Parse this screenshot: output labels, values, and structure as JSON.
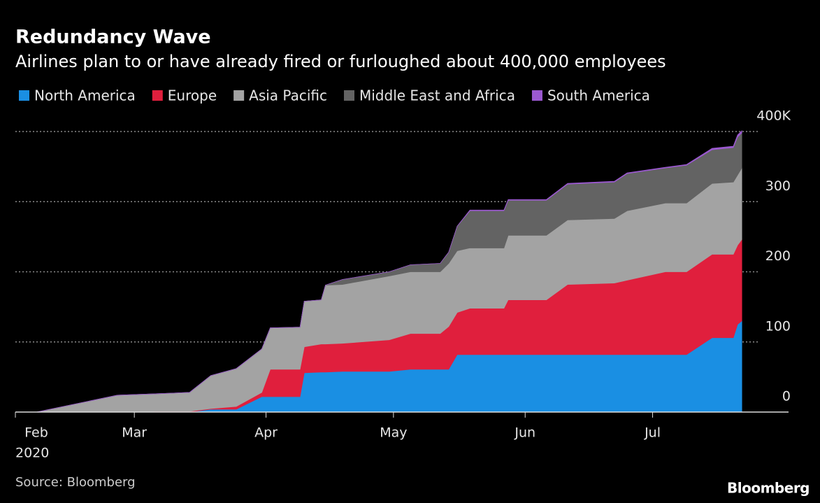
{
  "chart_data": {
    "type": "stacked_area",
    "title": "Redundancy Wave",
    "subtitle": "Airlines plan to or have already fired or furloughed about 400,000 employees",
    "source": "Source: Bloomberg",
    "brand": "Bloomberg",
    "year_label": "2020",
    "x": [
      6,
      25,
      34,
      42,
      47,
      53,
      59,
      61,
      68,
      69,
      73,
      74,
      78,
      89,
      94,
      101,
      103,
      105,
      108,
      116,
      117,
      126,
      131,
      142,
      145,
      154,
      159,
      165,
      170,
      171,
      172
    ],
    "series": [
      {
        "name": "North America",
        "color": "#1a8fe3",
        "values": [
          0,
          0,
          0,
          0,
          4,
          4,
          22,
          22,
          22,
          56,
          57,
          57,
          58,
          58,
          61,
          61,
          61,
          82,
          82,
          82,
          82,
          82,
          82,
          82,
          82,
          82,
          82,
          106,
          106,
          125,
          130
        ]
      },
      {
        "name": "Europe",
        "color": "#e01f3d",
        "values": [
          0,
          0,
          1,
          1,
          1,
          4,
          6,
          39,
          39,
          37,
          40,
          40,
          40,
          45,
          51,
          51,
          61,
          60,
          66,
          66,
          78,
          78,
          100,
          102,
          106,
          118,
          118,
          119,
          119,
          113,
          116
        ]
      },
      {
        "name": "Asia Pacific",
        "color": "#a3a3a3",
        "values": [
          0,
          24,
          25,
          27,
          47,
          54,
          62,
          59,
          60,
          65,
          63,
          84,
          84,
          91,
          88,
          88,
          90,
          88,
          86,
          86,
          92,
          92,
          92,
          92,
          99,
          98,
          98,
          101,
          103,
          100,
          102
        ]
      },
      {
        "name": "Middle East and Africa",
        "color": "#636363",
        "values": [
          0,
          0,
          0,
          0,
          0,
          0,
          0,
          0,
          0,
          0,
          0,
          0,
          7,
          6,
          10,
          12,
          16,
          35,
          53,
          53,
          50,
          50,
          51,
          52,
          53,
          50,
          54,
          48,
          49,
          54,
          50
        ]
      },
      {
        "name": "South America",
        "color": "#9b59d0",
        "values": [
          0,
          0,
          0,
          0,
          0,
          0,
          0,
          0,
          0,
          0,
          0,
          0,
          0,
          0,
          0,
          0,
          0,
          0,
          1,
          1,
          1,
          1,
          1,
          1,
          1,
          1,
          1,
          2,
          2,
          3,
          3
        ]
      }
    ],
    "xlim": [
      1,
      183
    ],
    "xticks": [
      {
        "value": 0,
        "label": "Feb"
      },
      {
        "value": 29,
        "label": "Mar"
      },
      {
        "value": 60,
        "label": "Apr"
      },
      {
        "value": 90,
        "label": "May"
      },
      {
        "value": 121,
        "label": "Jun"
      },
      {
        "value": 151,
        "label": "Jul"
      }
    ],
    "ylim": [
      0,
      400
    ],
    "yticks": [
      0,
      100,
      200,
      300,
      {
        "value": 400,
        "label": "400K"
      }
    ],
    "grid": true
  }
}
